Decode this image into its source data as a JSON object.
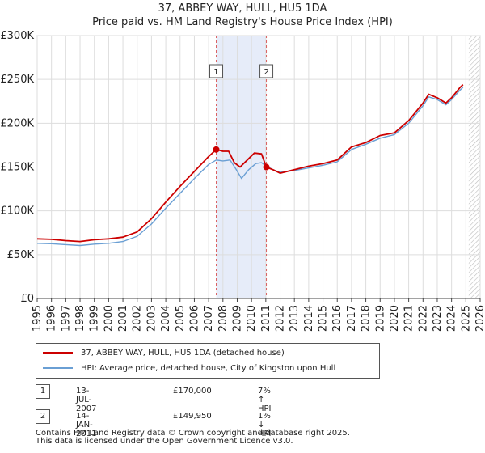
{
  "chart_data": {
    "type": "line",
    "title": "37, ABBEY WAY, HULL, HU5 1DA",
    "subtitle": "Price paid vs. HM Land Registry's House Price Index (HPI)",
    "xlim": [
      1995,
      2026
    ],
    "ylim": [
      0,
      300000
    ],
    "x_ticks": [
      "1995",
      "1996",
      "1997",
      "1998",
      "1999",
      "2000",
      "2001",
      "2002",
      "2003",
      "2004",
      "2005",
      "2006",
      "2007",
      "2008",
      "2009",
      "2010",
      "2011",
      "2012",
      "2013",
      "2014",
      "2015",
      "2016",
      "2017",
      "2018",
      "2019",
      "2020",
      "2021",
      "2022",
      "2023",
      "2024",
      "2025",
      "2026"
    ],
    "y_ticks": [
      {
        "value": 0,
        "label": "£0"
      },
      {
        "value": 50000,
        "label": "£50K"
      },
      {
        "value": 100000,
        "label": "£100K"
      },
      {
        "value": 150000,
        "label": "£150K"
      },
      {
        "value": 200000,
        "label": "£200K"
      },
      {
        "value": 250000,
        "label": "£250K"
      },
      {
        "value": 300000,
        "label": "£300K"
      }
    ],
    "grid": true,
    "shaded_period": [
      2007.53,
      2011.04
    ],
    "data_end": 2025.2,
    "series": [
      {
        "name": "37, ABBEY WAY, HULL, HU5 1DA (detached house)",
        "color": "#cc0000",
        "points": [
          [
            1995,
            68000
          ],
          [
            1996,
            67500
          ],
          [
            1997,
            66000
          ],
          [
            1998,
            65000
          ],
          [
            1999,
            67000
          ],
          [
            2000,
            68000
          ],
          [
            2001,
            70000
          ],
          [
            2002,
            76000
          ],
          [
            2003,
            91000
          ],
          [
            2004,
            110000
          ],
          [
            2005,
            128000
          ],
          [
            2006,
            145000
          ],
          [
            2007,
            162000
          ],
          [
            2007.53,
            170000
          ],
          [
            2008,
            168000
          ],
          [
            2008.4,
            168000
          ],
          [
            2008.8,
            155000
          ],
          [
            2009.2,
            150000
          ],
          [
            2009.7,
            158000
          ],
          [
            2010.2,
            166000
          ],
          [
            2010.7,
            165000
          ],
          [
            2011.04,
            149950
          ],
          [
            2011.5,
            147000
          ],
          [
            2012,
            143000
          ],
          [
            2013,
            147000
          ],
          [
            2014,
            151000
          ],
          [
            2015,
            154000
          ],
          [
            2016,
            158000
          ],
          [
            2017,
            173000
          ],
          [
            2018,
            178000
          ],
          [
            2019,
            186000
          ],
          [
            2020,
            189000
          ],
          [
            2021,
            203000
          ],
          [
            2022,
            223000
          ],
          [
            2022.4,
            233000
          ],
          [
            2023,
            229000
          ],
          [
            2023.6,
            223000
          ],
          [
            2024,
            229000
          ],
          [
            2024.6,
            241000
          ],
          [
            2024.8,
            244000
          ]
        ]
      },
      {
        "name": "HPI: Average price, detached house, City of Kingston upon Hull",
        "color": "#6a9fd4",
        "points": [
          [
            1995,
            63000
          ],
          [
            1996,
            62500
          ],
          [
            1997,
            61500
          ],
          [
            1998,
            60500
          ],
          [
            1999,
            62000
          ],
          [
            2000,
            63000
          ],
          [
            2001,
            65000
          ],
          [
            2002,
            71000
          ],
          [
            2003,
            85000
          ],
          [
            2004,
            103000
          ],
          [
            2005,
            120000
          ],
          [
            2006,
            137000
          ],
          [
            2007,
            153000
          ],
          [
            2007.53,
            158000
          ],
          [
            2008,
            157000
          ],
          [
            2008.5,
            158000
          ],
          [
            2008.9,
            148000
          ],
          [
            2009.3,
            137000
          ],
          [
            2009.8,
            147000
          ],
          [
            2010.3,
            154000
          ],
          [
            2010.7,
            155000
          ],
          [
            2011.04,
            151000
          ],
          [
            2011.5,
            147000
          ],
          [
            2012,
            144000
          ],
          [
            2013,
            146000
          ],
          [
            2014,
            149000
          ],
          [
            2015,
            152000
          ],
          [
            2016,
            156000
          ],
          [
            2017,
            170000
          ],
          [
            2018,
            176000
          ],
          [
            2019,
            183000
          ],
          [
            2020,
            187000
          ],
          [
            2021,
            200000
          ],
          [
            2022,
            220000
          ],
          [
            2022.4,
            230000
          ],
          [
            2023,
            227000
          ],
          [
            2023.6,
            221000
          ],
          [
            2024,
            227000
          ],
          [
            2024.6,
            238000
          ],
          [
            2024.8,
            241000
          ]
        ]
      }
    ],
    "markers": [
      {
        "label": "1",
        "x": 2007.53,
        "y": 170000
      },
      {
        "label": "2",
        "x": 2011.04,
        "y": 149950
      }
    ]
  },
  "legend": {
    "entries": [
      {
        "label": "37, ABBEY WAY, HULL, HU5 1DA (detached house)",
        "color": "#cc0000"
      },
      {
        "label": "HPI: Average price, detached house, City of Kingston upon Hull",
        "color": "#6a9fd4"
      }
    ]
  },
  "transactions": [
    {
      "badge": "1",
      "date": "13-JUL-2007",
      "price": "£170,000",
      "hpi": "7% ↑ HPI"
    },
    {
      "badge": "2",
      "date": "14-JAN-2011",
      "price": "£149,950",
      "hpi": "1% ↓ HPI"
    }
  ],
  "footer": {
    "line1": "Contains HM Land Registry data © Crown copyright and database right 2025.",
    "line2": "This data is licensed under the Open Government Licence v3.0."
  }
}
